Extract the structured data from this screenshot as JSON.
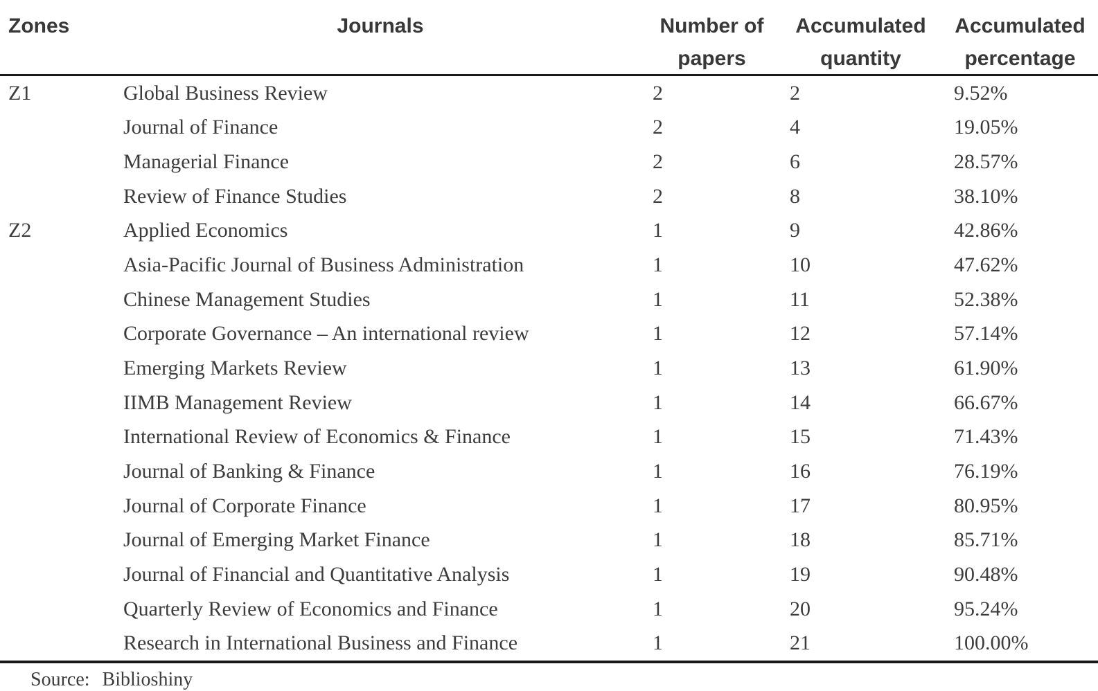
{
  "colors": {
    "background": "#ffffff",
    "text_header": "#383838",
    "text_body": "#3c3c3c",
    "rule": "#181818"
  },
  "table": {
    "header": {
      "zones": "Zones",
      "journals": "Journals",
      "papers_line1": "Number of",
      "papers_line2": "papers",
      "quantity_line1": "Accumulated",
      "quantity_line2": "quantity",
      "percentage_line1": "Accumulated",
      "percentage_line2": "percentage"
    },
    "rows": [
      {
        "zone": "Z1",
        "journal": "Global Business Review",
        "papers": "2",
        "quantity": "2",
        "percentage": "9.52%"
      },
      {
        "zone": "",
        "journal": "Journal of Finance",
        "papers": "2",
        "quantity": "4",
        "percentage": "19.05%"
      },
      {
        "zone": "",
        "journal": "Managerial Finance",
        "papers": "2",
        "quantity": "6",
        "percentage": "28.57%"
      },
      {
        "zone": "",
        "journal": "Review of Finance Studies",
        "papers": "2",
        "quantity": "8",
        "percentage": "38.10%"
      },
      {
        "zone": "Z2",
        "journal": "Applied Economics",
        "papers": "1",
        "quantity": "9",
        "percentage": "42.86%"
      },
      {
        "zone": "",
        "journal": "Asia-Pacific Journal of Business Administration",
        "papers": "1",
        "quantity": "10",
        "percentage": "47.62%"
      },
      {
        "zone": "",
        "journal": "Chinese Management Studies",
        "papers": "1",
        "quantity": "11",
        "percentage": "52.38%"
      },
      {
        "zone": "",
        "journal": "Corporate Governance – An international review",
        "papers": "1",
        "quantity": "12",
        "percentage": "57.14%"
      },
      {
        "zone": "",
        "journal": "Emerging Markets Review",
        "papers": "1",
        "quantity": "13",
        "percentage": "61.90%"
      },
      {
        "zone": "",
        "journal": "IIMB Management Review",
        "papers": "1",
        "quantity": "14",
        "percentage": "66.67%"
      },
      {
        "zone": "",
        "journal": "International Review of Economics & Finance",
        "papers": "1",
        "quantity": "15",
        "percentage": "71.43%"
      },
      {
        "zone": "",
        "journal": "Journal of Banking & Finance",
        "papers": "1",
        "quantity": "16",
        "percentage": "76.19%"
      },
      {
        "zone": "",
        "journal": "Journal of Corporate Finance",
        "papers": "1",
        "quantity": "17",
        "percentage": "80.95%"
      },
      {
        "zone": "",
        "journal": "Journal of Emerging Market Finance",
        "papers": "1",
        "quantity": "18",
        "percentage": "85.71%"
      },
      {
        "zone": "",
        "journal": "Journal of Financial and Quantitative Analysis",
        "papers": "1",
        "quantity": "19",
        "percentage": "90.48%"
      },
      {
        "zone": "",
        "journal": "Quarterly Review of Economics and Finance",
        "papers": "1",
        "quantity": "20",
        "percentage": "95.24%"
      },
      {
        "zone": "",
        "journal": "Research in International Business and Finance",
        "papers": "1",
        "quantity": "21",
        "percentage": "100.00%"
      }
    ],
    "source": {
      "label": "Source:",
      "value": "Biblioshiny"
    }
  }
}
